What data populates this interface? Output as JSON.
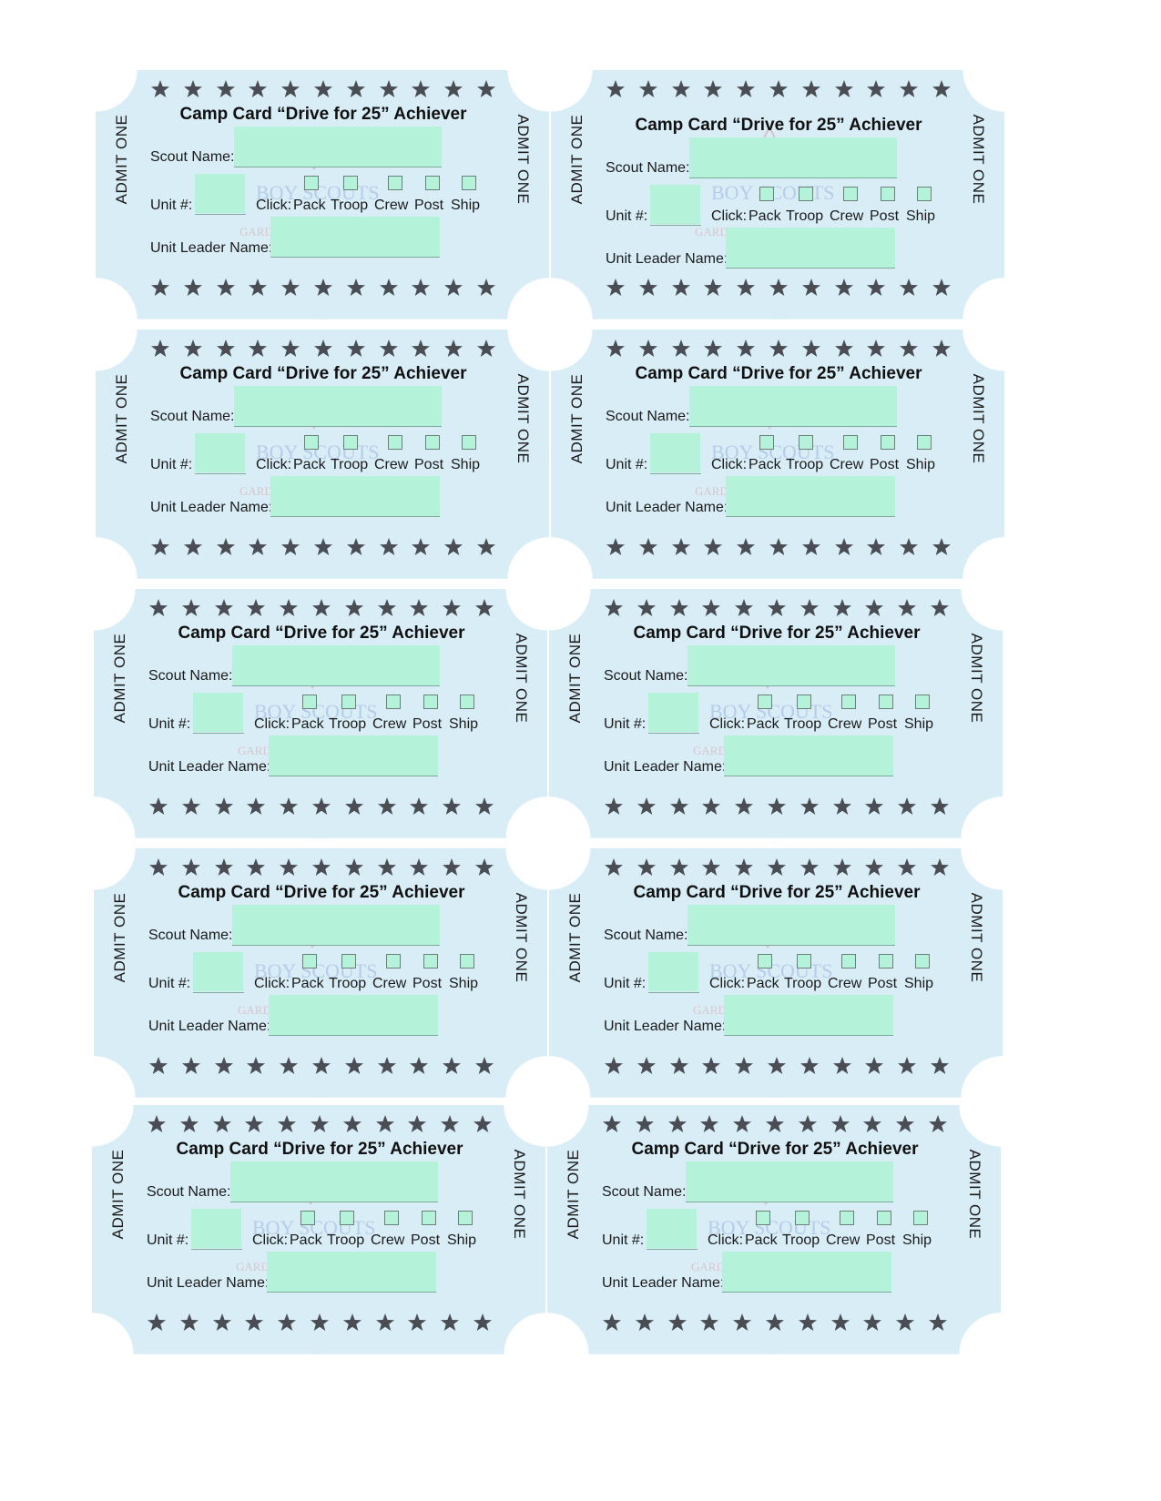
{
  "ticket": {
    "admit_label": "ADMIT ONE",
    "title": "Camp Card “Drive for 25” Achiever",
    "scout_name_label": "Scout Name:",
    "unit_label": "Unit #:",
    "click_label": "Click:",
    "unit_types": [
      "Pack",
      "Troop",
      "Crew",
      "Post",
      "Ship"
    ],
    "unit_leader_label": "Unit Leader Name:",
    "watermark_line1": "BOY SCOUTS",
    "watermark_line2": "GARDEN STATE COUNCIL"
  },
  "tickets": [
    {
      "id": "t1"
    },
    {
      "id": "t2"
    },
    {
      "id": "t3"
    },
    {
      "id": "t4"
    },
    {
      "id": "t5"
    },
    {
      "id": "t6"
    },
    {
      "id": "t7"
    },
    {
      "id": "t8"
    },
    {
      "id": "t9"
    },
    {
      "id": "t10"
    }
  ],
  "colors": {
    "ticket_bg": "#d9edf7",
    "field_fill": "#b4f2d9",
    "star": "#4a4e54"
  }
}
